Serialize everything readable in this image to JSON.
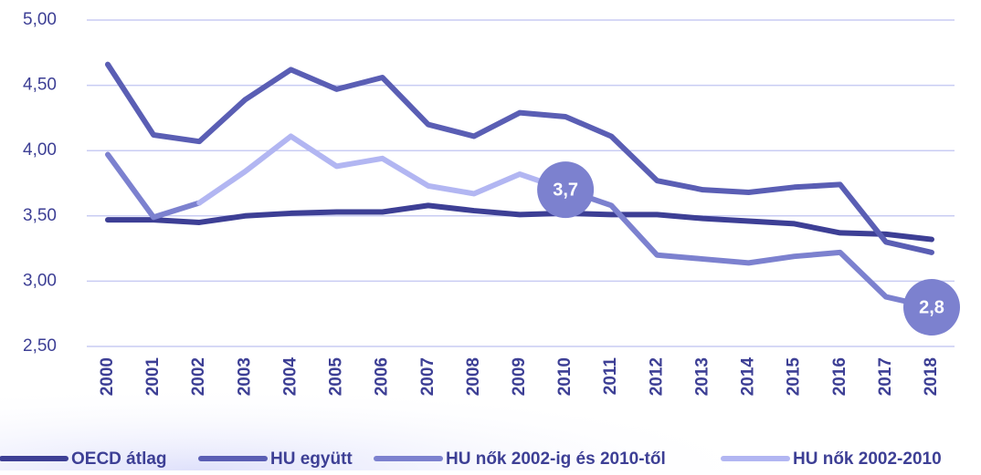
{
  "chart_data": {
    "type": "line",
    "categories": [
      "2000",
      "2001",
      "2002",
      "2003",
      "2004",
      "2005",
      "2006",
      "2007",
      "2008",
      "2009",
      "2010",
      "2011",
      "2012",
      "2013",
      "2014",
      "2015",
      "2016",
      "2017",
      "2018"
    ],
    "series": [
      {
        "name": "OECD átlag",
        "color": "#3d3f95",
        "values": [
          3.47,
          3.47,
          3.45,
          3.5,
          3.52,
          3.53,
          3.53,
          3.58,
          3.54,
          3.51,
          3.52,
          3.51,
          3.51,
          3.48,
          3.46,
          3.44,
          3.37,
          3.36,
          3.32
        ]
      },
      {
        "name": "HU együtt",
        "color": "#5a5eb4",
        "values": [
          4.66,
          4.12,
          4.07,
          4.39,
          4.62,
          4.47,
          4.56,
          4.2,
          4.11,
          4.29,
          4.26,
          4.11,
          3.77,
          3.7,
          3.68,
          3.72,
          3.74,
          3.3,
          3.22
        ]
      },
      {
        "name": "HU nők 2002-ig és 2010-től",
        "color": "#7c81cf",
        "values": [
          3.97,
          3.49,
          3.6,
          null,
          null,
          null,
          null,
          null,
          null,
          null,
          3.7,
          3.58,
          3.2,
          3.17,
          3.14,
          3.19,
          3.22,
          2.88,
          2.8
        ],
        "value_labels": [
          null,
          null,
          null,
          null,
          null,
          null,
          null,
          null,
          null,
          null,
          "3,7",
          null,
          null,
          null,
          null,
          null,
          null,
          null,
          "2,8"
        ]
      },
      {
        "name": "HU nők 2002-2010",
        "color": "#b2b6f2",
        "values": [
          null,
          null,
          3.6,
          3.84,
          4.11,
          3.88,
          3.94,
          3.73,
          3.67,
          3.82,
          3.7,
          null,
          null,
          null,
          null,
          null,
          null,
          null,
          null
        ]
      }
    ],
    "ylim": [
      2.5,
      5.0
    ],
    "yticks": [
      {
        "value": 2.5,
        "label": "2,50"
      },
      {
        "value": 3.0,
        "label": "3,00"
      },
      {
        "value": 3.5,
        "label": "3,50"
      },
      {
        "value": 4.0,
        "label": "4,00"
      },
      {
        "value": 4.5,
        "label": "4,50"
      },
      {
        "value": 5.0,
        "label": "5,00"
      }
    ],
    "grid": true
  }
}
